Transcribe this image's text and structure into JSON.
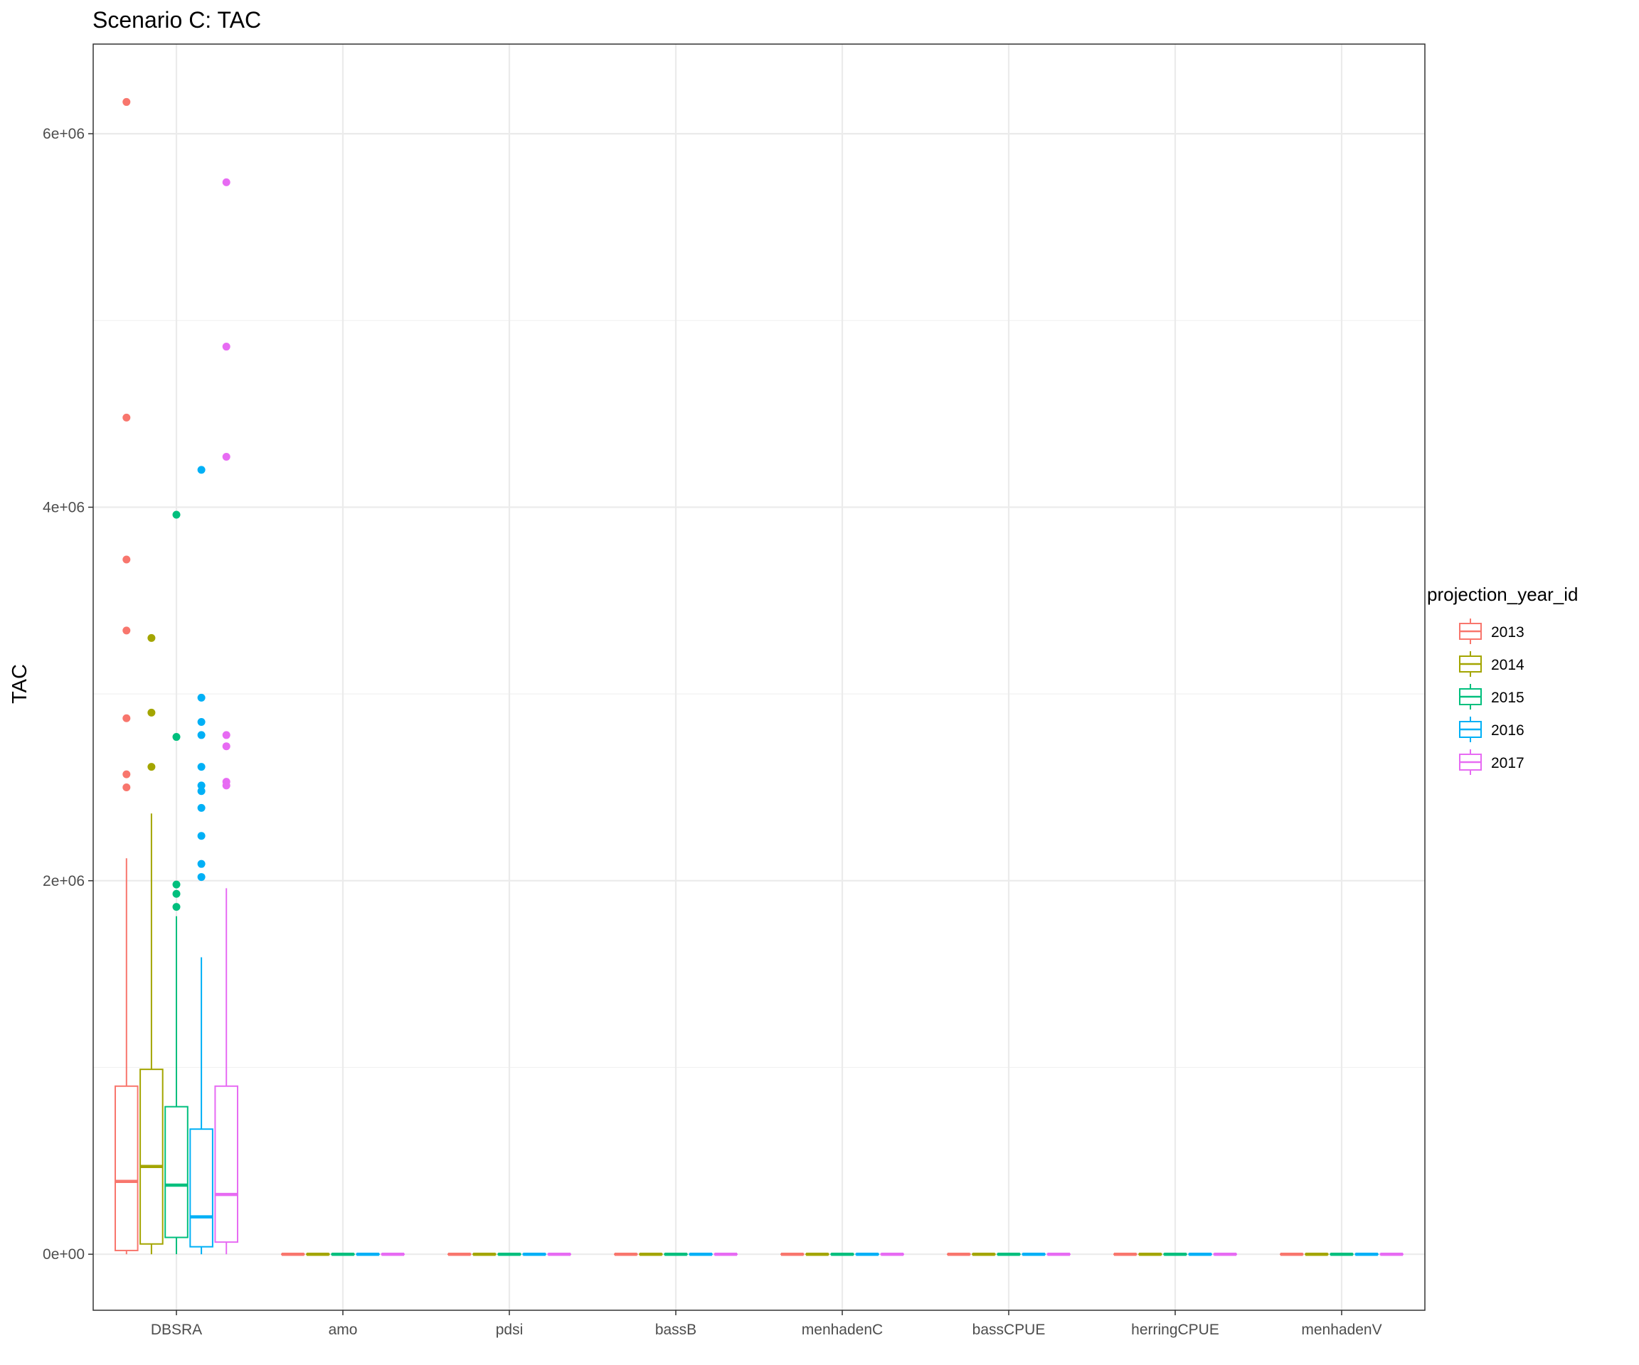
{
  "chart_data": {
    "type": "box",
    "title": "Scenario C: TAC",
    "xlabel": "",
    "ylabel": "TAC",
    "ylim": [
      -300000,
      6480000
    ],
    "y_ticks": [
      0,
      2000000,
      4000000,
      6000000
    ],
    "y_tick_labels": [
      "0e+00",
      "2e+06",
      "4e+06",
      "6e+06"
    ],
    "categories": [
      "DBSRA",
      "amo",
      "pdsi",
      "bassB",
      "menhadenC",
      "bassCPUE",
      "herringCPUE",
      "menhadenV"
    ],
    "grid": true,
    "legend": {
      "title": "projection_year_id",
      "position": "right"
    },
    "series": [
      {
        "name": "2013",
        "color": "#F8766D",
        "boxes": [
          {
            "category": "DBSRA",
            "min": 0,
            "q1": 20000,
            "median": 390000,
            "q3": 900000,
            "max": 2120000,
            "outliers": [
              6170000,
              4480000,
              3720000,
              3340000,
              2870000,
              2570000,
              2500000
            ]
          },
          {
            "category": "amo",
            "min": 0,
            "q1": 0,
            "median": 0,
            "q3": 0,
            "max": 0,
            "outliers": []
          },
          {
            "category": "pdsi",
            "min": 0,
            "q1": 0,
            "median": 0,
            "q3": 0,
            "max": 0,
            "outliers": []
          },
          {
            "category": "bassB",
            "min": 0,
            "q1": 0,
            "median": 0,
            "q3": 0,
            "max": 0,
            "outliers": []
          },
          {
            "category": "menhadenC",
            "min": 0,
            "q1": 0,
            "median": 0,
            "q3": 0,
            "max": 0,
            "outliers": []
          },
          {
            "category": "bassCPUE",
            "min": 0,
            "q1": 0,
            "median": 0,
            "q3": 0,
            "max": 0,
            "outliers": []
          },
          {
            "category": "herringCPUE",
            "min": 0,
            "q1": 0,
            "median": 0,
            "q3": 0,
            "max": 0,
            "outliers": []
          },
          {
            "category": "menhadenV",
            "min": 0,
            "q1": 0,
            "median": 0,
            "q3": 0,
            "max": 0,
            "outliers": []
          }
        ]
      },
      {
        "name": "2014",
        "color": "#A3A500",
        "boxes": [
          {
            "category": "DBSRA",
            "min": 0,
            "q1": 55000,
            "median": 470000,
            "q3": 990000,
            "max": 2360000,
            "outliers": [
              3300000,
              2900000,
              2610000
            ]
          },
          {
            "category": "amo",
            "min": 0,
            "q1": 0,
            "median": 0,
            "q3": 0,
            "max": 0,
            "outliers": []
          },
          {
            "category": "pdsi",
            "min": 0,
            "q1": 0,
            "median": 0,
            "q3": 0,
            "max": 0,
            "outliers": []
          },
          {
            "category": "bassB",
            "min": 0,
            "q1": 0,
            "median": 0,
            "q3": 0,
            "max": 0,
            "outliers": []
          },
          {
            "category": "menhadenC",
            "min": 0,
            "q1": 0,
            "median": 0,
            "q3": 0,
            "max": 0,
            "outliers": []
          },
          {
            "category": "bassCPUE",
            "min": 0,
            "q1": 0,
            "median": 0,
            "q3": 0,
            "max": 0,
            "outliers": []
          },
          {
            "category": "herringCPUE",
            "min": 0,
            "q1": 0,
            "median": 0,
            "q3": 0,
            "max": 0,
            "outliers": []
          },
          {
            "category": "menhadenV",
            "min": 0,
            "q1": 0,
            "median": 0,
            "q3": 0,
            "max": 0,
            "outliers": []
          }
        ]
      },
      {
        "name": "2015",
        "color": "#00BF7D",
        "boxes": [
          {
            "category": "DBSRA",
            "min": 0,
            "q1": 90000,
            "median": 370000,
            "q3": 790000,
            "max": 1810000,
            "outliers": [
              3960000,
              2770000,
              1980000,
              1930000,
              1860000
            ]
          },
          {
            "category": "amo",
            "min": 0,
            "q1": 0,
            "median": 0,
            "q3": 0,
            "max": 0,
            "outliers": []
          },
          {
            "category": "pdsi",
            "min": 0,
            "q1": 0,
            "median": 0,
            "q3": 0,
            "max": 0,
            "outliers": []
          },
          {
            "category": "bassB",
            "min": 0,
            "q1": 0,
            "median": 0,
            "q3": 0,
            "max": 0,
            "outliers": []
          },
          {
            "category": "menhadenC",
            "min": 0,
            "q1": 0,
            "median": 0,
            "q3": 0,
            "max": 0,
            "outliers": []
          },
          {
            "category": "bassCPUE",
            "min": 0,
            "q1": 0,
            "median": 0,
            "q3": 0,
            "max": 0,
            "outliers": []
          },
          {
            "category": "herringCPUE",
            "min": 0,
            "q1": 0,
            "median": 0,
            "q3": 0,
            "max": 0,
            "outliers": []
          },
          {
            "category": "menhadenV",
            "min": 0,
            "q1": 0,
            "median": 0,
            "q3": 0,
            "max": 0,
            "outliers": []
          }
        ]
      },
      {
        "name": "2016",
        "color": "#00B0F6",
        "boxes": [
          {
            "category": "DBSRA",
            "min": 0,
            "q1": 40000,
            "median": 200000,
            "q3": 670000,
            "max": 1590000,
            "outliers": [
              4200000,
              2980000,
              2850000,
              2780000,
              2610000,
              2510000,
              2480000,
              2390000,
              2240000,
              2090000,
              2020000
            ]
          },
          {
            "category": "amo",
            "min": 0,
            "q1": 0,
            "median": 0,
            "q3": 0,
            "max": 0,
            "outliers": []
          },
          {
            "category": "pdsi",
            "min": 0,
            "q1": 0,
            "median": 0,
            "q3": 0,
            "max": 0,
            "outliers": []
          },
          {
            "category": "bassB",
            "min": 0,
            "q1": 0,
            "median": 0,
            "q3": 0,
            "max": 0,
            "outliers": []
          },
          {
            "category": "menhadenC",
            "min": 0,
            "q1": 0,
            "median": 0,
            "q3": 0,
            "max": 0,
            "outliers": []
          },
          {
            "category": "bassCPUE",
            "min": 0,
            "q1": 0,
            "median": 0,
            "q3": 0,
            "max": 0,
            "outliers": []
          },
          {
            "category": "herringCPUE",
            "min": 0,
            "q1": 0,
            "median": 0,
            "q3": 0,
            "max": 0,
            "outliers": []
          },
          {
            "category": "menhadenV",
            "min": 0,
            "q1": 0,
            "median": 0,
            "q3": 0,
            "max": 0,
            "outliers": []
          }
        ]
      },
      {
        "name": "2017",
        "color": "#E76BF3",
        "boxes": [
          {
            "category": "DBSRA",
            "min": 0,
            "q1": 65000,
            "median": 320000,
            "q3": 900000,
            "max": 1960000,
            "outliers": [
              5740000,
              4860000,
              4270000,
              2780000,
              2720000,
              2530000,
              2510000
            ]
          },
          {
            "category": "amo",
            "min": 0,
            "q1": 0,
            "median": 0,
            "q3": 0,
            "max": 0,
            "outliers": []
          },
          {
            "category": "pdsi",
            "min": 0,
            "q1": 0,
            "median": 0,
            "q3": 0,
            "max": 0,
            "outliers": []
          },
          {
            "category": "bassB",
            "min": 0,
            "q1": 0,
            "median": 0,
            "q3": 0,
            "max": 0,
            "outliers": []
          },
          {
            "category": "menhadenC",
            "min": 0,
            "q1": 0,
            "median": 0,
            "q3": 0,
            "max": 0,
            "outliers": []
          },
          {
            "category": "bassCPUE",
            "min": 0,
            "q1": 0,
            "median": 0,
            "q3": 0,
            "max": 0,
            "outliers": []
          },
          {
            "category": "herringCPUE",
            "min": 0,
            "q1": 0,
            "median": 0,
            "q3": 0,
            "max": 0,
            "outliers": []
          },
          {
            "category": "menhadenV",
            "min": 0,
            "q1": 0,
            "median": 0,
            "q3": 0,
            "max": 0,
            "outliers": []
          }
        ]
      }
    ]
  }
}
